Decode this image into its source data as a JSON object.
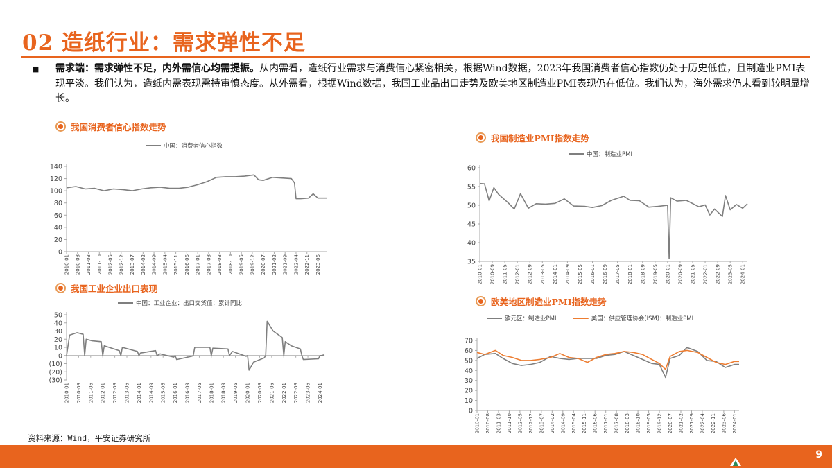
{
  "page": {
    "title": "02 造纸行业：需求弹性不足",
    "bullet": "■",
    "paragraph_bold": "需求端：需求弹性不足，内外需信心均需提振。",
    "paragraph_rest": "从内需看，造纸行业需求与消费信心紧密相关，根据Wind数据，2023年我国消费者信心指数仍处于历史低位，且制造业PMI表现平淡。我们认为，造纸内需表现需持审慎态度。从外需看，根据Wind数据，我国工业品出口走势及欧美地区制造业PMI表现仍在低位。我们认为，海外需求仍未看到较明显增长。",
    "source": "资料来源：Wind，平安证券研究所",
    "page_number": "9"
  },
  "colors": {
    "accent": "#e8641e",
    "series_gray": "#7f7f7f",
    "series_orange": "#ed7d31",
    "axis": "#aaaaaa"
  },
  "icons": {
    "heading": "target-circle-icon",
    "footer": "company-logo-icon"
  },
  "chart_data": [
    {
      "heading": "我国消费者信心指数走势",
      "type": "line",
      "legend": [
        "中国：消费者信心指数"
      ],
      "legend_position": "top",
      "grid": false,
      "ylim": [
        0,
        140
      ],
      "yticks": [
        0,
        20,
        40,
        60,
        80,
        100,
        120,
        140
      ],
      "ytick_labels": [
        "0",
        "20",
        "40",
        "60",
        "80",
        "100",
        "120",
        "140"
      ],
      "xticks": [
        "2010-01",
        "2010-08",
        "2011-03",
        "2011-10",
        "2012-05",
        "2012-12",
        "2013-07",
        "2014-02",
        "2014-09",
        "2015-04",
        "2015-11",
        "2016-06",
        "2017-01",
        "2017-08",
        "2018-03",
        "2018-10",
        "2019-05",
        "2019-12",
        "2020-07",
        "2021-02",
        "2021-09",
        "2022-04",
        "2022-11",
        "2023-06"
      ],
      "xlim": [
        "2010-01",
        "2023-12"
      ],
      "series": [
        {
          "name": "中国：消费者信心指数",
          "x": [
            "2010-01",
            "2010-07",
            "2011-01",
            "2011-07",
            "2012-01",
            "2012-07",
            "2013-01",
            "2013-07",
            "2014-01",
            "2014-07",
            "2015-01",
            "2015-07",
            "2016-01",
            "2016-07",
            "2017-01",
            "2017-07",
            "2018-01",
            "2018-07",
            "2019-01",
            "2019-07",
            "2020-01",
            "2020-04",
            "2020-07",
            "2021-01",
            "2021-07",
            "2022-01",
            "2022-03",
            "2022-04",
            "2022-07",
            "2022-12",
            "2023-03",
            "2023-06",
            "2023-12"
          ],
          "y": [
            105,
            107,
            103,
            104,
            100,
            103,
            102,
            100,
            103,
            105,
            106,
            104,
            104,
            106,
            110,
            115,
            122,
            123,
            123,
            124,
            126,
            118,
            117,
            122,
            121,
            120,
            113,
            87,
            87,
            88,
            95,
            88,
            88
          ]
        }
      ]
    },
    {
      "heading": "我国制造业PMI指数走势",
      "type": "line",
      "legend": [
        "中国：制造业PMI"
      ],
      "legend_position": "top",
      "grid": false,
      "ylim": [
        35,
        60
      ],
      "yticks": [
        35,
        40,
        45,
        50,
        55,
        60
      ],
      "ytick_labels": [
        "35",
        "40",
        "45",
        "50",
        "55",
        "60"
      ],
      "xticks": [
        "2010-01",
        "2010-09",
        "2011-05",
        "2012-01",
        "2012-09",
        "2013-05",
        "2014-01",
        "2014-09",
        "2015-05",
        "2016-01",
        "2016-09",
        "2017-05",
        "2018-01",
        "2018-09",
        "2019-05",
        "2020-01",
        "2020-09",
        "2021-05",
        "2022-01",
        "2022-09",
        "2023-05",
        "2024-01"
      ],
      "xlim": [
        "2010-01",
        "2024-04"
      ],
      "series": [
        {
          "name": "中国：制造业PMI",
          "x": [
            "2010-01",
            "2010-04",
            "2010-07",
            "2010-10",
            "2011-01",
            "2011-07",
            "2011-11",
            "2012-03",
            "2012-08",
            "2013-01",
            "2013-07",
            "2014-01",
            "2014-07",
            "2015-01",
            "2015-08",
            "2016-01",
            "2016-07",
            "2017-01",
            "2017-09",
            "2018-01",
            "2018-07",
            "2019-01",
            "2019-07",
            "2020-01",
            "2020-02",
            "2020-03",
            "2020-07",
            "2021-01",
            "2021-09",
            "2022-01",
            "2022-04",
            "2022-07",
            "2022-12",
            "2023-02",
            "2023-05",
            "2023-09",
            "2024-01",
            "2024-04"
          ],
          "y": [
            55.8,
            55.7,
            51.2,
            54.7,
            52.9,
            50.7,
            49.0,
            53.1,
            49.2,
            50.4,
            50.3,
            50.5,
            51.7,
            49.8,
            49.7,
            49.4,
            49.9,
            51.3,
            52.4,
            51.3,
            51.2,
            49.5,
            49.7,
            50.0,
            35.7,
            52.0,
            51.1,
            51.3,
            49.6,
            50.1,
            47.4,
            49.0,
            47.0,
            52.6,
            48.8,
            50.2,
            49.2,
            50.4
          ]
        }
      ]
    },
    {
      "heading": "我国工业企业出口表现",
      "type": "line",
      "legend": [
        "中国：工业企业：出口交货值：累计同比"
      ],
      "legend_position": "top",
      "grid": false,
      "ylim": [
        -30,
        50
      ],
      "yticks": [
        -30,
        -20,
        -10,
        0,
        10,
        20,
        30,
        40,
        50
      ],
      "ytick_labels": [
        "(30)",
        "(20)",
        "(10)",
        "0",
        "10",
        "20",
        "30",
        "40",
        "50"
      ],
      "xticks": [
        "2010-01",
        "2010-09",
        "2011-05",
        "2012-01",
        "2012-09",
        "2013-05",
        "2014-01",
        "2014-09",
        "2015-05",
        "2016-01",
        "2016-09",
        "2017-05",
        "2018-01",
        "2018-09",
        "2019-05",
        "2020-01",
        "2020-09",
        "2021-05",
        "2022-01",
        "2022-09",
        "2023-05",
        "2024-01"
      ],
      "xlim": [
        "2010-01",
        "2024-04"
      ],
      "series": [
        {
          "name": "中国：工业企业：出口交货值：累计同比",
          "x": [
            "2010-01",
            "2010-03",
            "2010-08",
            "2010-12",
            "2011-01",
            "2011-02",
            "2011-06",
            "2011-12",
            "2012-01",
            "2012-02",
            "2012-12",
            "2013-01",
            "2013-02",
            "2013-12",
            "2014-01",
            "2014-02",
            "2014-12",
            "2015-01",
            "2015-03",
            "2015-12",
            "2016-01",
            "2016-02",
            "2016-12",
            "2017-01",
            "2017-02",
            "2017-12",
            "2018-01",
            "2018-02",
            "2018-12",
            "2019-01",
            "2019-03",
            "2019-12",
            "2020-01",
            "2020-02",
            "2020-05",
            "2020-12",
            "2021-01",
            "2021-02",
            "2021-06",
            "2021-12",
            "2022-01",
            "2022-02",
            "2022-06",
            "2022-12",
            "2023-01",
            "2023-02",
            "2023-12",
            "2024-01",
            "2024-02",
            "2024-04"
          ],
          "y": [
            0,
            25,
            28,
            26,
            0,
            20,
            18,
            17,
            0,
            12,
            6,
            0,
            10,
            5,
            0,
            3,
            6,
            0,
            2,
            -2,
            0,
            -5,
            -1,
            0,
            10,
            10,
            0,
            9,
            8,
            0,
            5,
            -1,
            0,
            -18,
            -8,
            -3,
            0,
            42,
            30,
            22,
            0,
            17,
            12,
            8,
            0,
            -5,
            -4,
            0,
            0,
            1
          ]
        }
      ]
    },
    {
      "heading": "欧美地区制造业PMI指数走势",
      "type": "line",
      "legend": [
        "欧元区：制造业PMI",
        "美国：供应管理协会(ISM)：制造业PMI"
      ],
      "legend_position": "top",
      "grid": false,
      "ylim": [
        0,
        70
      ],
      "yticks": [
        0,
        10,
        20,
        30,
        40,
        50,
        60,
        70
      ],
      "ytick_labels": [
        "0",
        "10",
        "20",
        "30",
        "40",
        "50",
        "60",
        "70"
      ],
      "xticks": [
        "2010-01",
        "2010-08",
        "2011-03",
        "2011-10",
        "2012-05",
        "2012-12",
        "2013-07",
        "2014-02",
        "2014-09",
        "2015-04",
        "2015-11",
        "2016-06",
        "2017-01",
        "2017-08",
        "2018-03",
        "2018-10",
        "2019-05",
        "2019-12",
        "2020-07",
        "2021-02",
        "2021-09",
        "2022-04",
        "2022-11",
        "2023-06",
        "2024-01"
      ],
      "xlim": [
        "2010-01",
        "2024-04"
      ],
      "series": [
        {
          "name": "欧元区：制造业PMI",
          "x": [
            "2010-01",
            "2010-06",
            "2011-01",
            "2011-06",
            "2011-12",
            "2012-06",
            "2012-12",
            "2013-06",
            "2014-01",
            "2014-07",
            "2015-01",
            "2015-07",
            "2016-01",
            "2016-07",
            "2017-01",
            "2017-07",
            "2018-01",
            "2018-07",
            "2019-01",
            "2019-07",
            "2019-12",
            "2020-04",
            "2020-07",
            "2021-01",
            "2021-06",
            "2022-01",
            "2022-07",
            "2023-01",
            "2023-07",
            "2024-01",
            "2024-04"
          ],
          "y": [
            52,
            56,
            57,
            52,
            47,
            45,
            46,
            48,
            54,
            52,
            51,
            52,
            52,
            52,
            55,
            56,
            59,
            55,
            51,
            47,
            46,
            33,
            52,
            55,
            63,
            59,
            50,
            49,
            43,
            46,
            46
          ]
        },
        {
          "name": "美国：供应管理协会(ISM)：制造业PMI",
          "x": [
            "2010-01",
            "2010-06",
            "2011-01",
            "2011-06",
            "2011-12",
            "2012-06",
            "2012-12",
            "2013-06",
            "2014-01",
            "2014-07",
            "2015-01",
            "2015-07",
            "2016-01",
            "2016-07",
            "2017-01",
            "2017-07",
            "2018-01",
            "2018-07",
            "2019-01",
            "2019-07",
            "2019-12",
            "2020-04",
            "2020-07",
            "2021-01",
            "2021-06",
            "2022-01",
            "2022-07",
            "2023-01",
            "2023-07",
            "2024-01",
            "2024-04"
          ],
          "y": [
            58,
            56,
            60,
            55,
            53,
            50,
            50,
            51,
            53,
            57,
            53,
            52,
            48,
            53,
            56,
            57,
            59,
            58,
            56,
            51,
            47,
            41,
            54,
            59,
            60,
            58,
            53,
            48,
            46,
            49,
            49
          ]
        }
      ]
    }
  ]
}
